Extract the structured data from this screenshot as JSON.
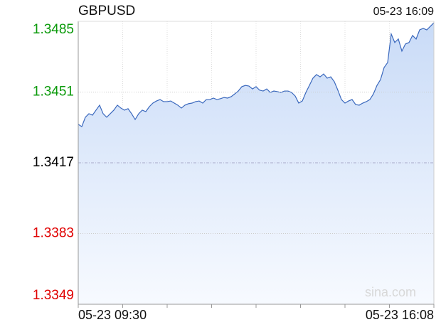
{
  "chart_data": {
    "type": "line",
    "title": "GBPUSD",
    "timestamp": "05-23 16:09",
    "watermark": "sina.com",
    "xlabels": [
      "05-23 09:30",
      "05-23 16:08"
    ],
    "ylim": [
      1.3349,
      1.3485
    ],
    "yticks": [
      1.3349,
      1.3383,
      1.3417,
      1.3451,
      1.3485
    ],
    "reference": 1.3417,
    "up_color": "#0a9a0a",
    "down_color": "#e00000",
    "flat_color": "#000000",
    "color": "#3a68bd",
    "grid": true,
    "values": [
      1.34355,
      1.34344,
      1.34389,
      1.34406,
      1.34399,
      1.34423,
      1.34447,
      1.34406,
      1.34389,
      1.34406,
      1.34423,
      1.34447,
      1.34433,
      1.34423,
      1.3443,
      1.34406,
      1.34378,
      1.34406,
      1.34423,
      1.34416,
      1.3444,
      1.34457,
      1.34467,
      1.34474,
      1.34464,
      1.34464,
      1.34467,
      1.34457,
      1.34447,
      1.34433,
      1.34447,
      1.34454,
      1.34457,
      1.34464,
      1.34467,
      1.34457,
      1.34474,
      1.34474,
      1.34481,
      1.34474,
      1.34478,
      1.34484,
      1.34481,
      1.34488,
      1.34501,
      1.34515,
      1.34536,
      1.34542,
      1.34539,
      1.34525,
      1.34536,
      1.34519,
      1.34515,
      1.34525,
      1.34508,
      1.34515,
      1.34512,
      1.34508,
      1.34515,
      1.34515,
      1.34508,
      1.34491,
      1.34457,
      1.34467,
      1.34508,
      1.34542,
      1.34577,
      1.34594,
      1.34583,
      1.34597,
      1.34577,
      1.34583,
      1.3456,
      1.34519,
      1.34474,
      1.34457,
      1.34467,
      1.34474,
      1.3445,
      1.34447,
      1.34457,
      1.34464,
      1.34474,
      1.34501,
      1.34542,
      1.3457,
      1.34628,
      1.34652,
      1.34789,
      1.34748,
      1.34765,
      1.34707,
      1.34741,
      1.34748,
      1.34782,
      1.34765,
      1.34809,
      1.34816,
      1.34809,
      1.34826,
      1.34843
    ]
  }
}
